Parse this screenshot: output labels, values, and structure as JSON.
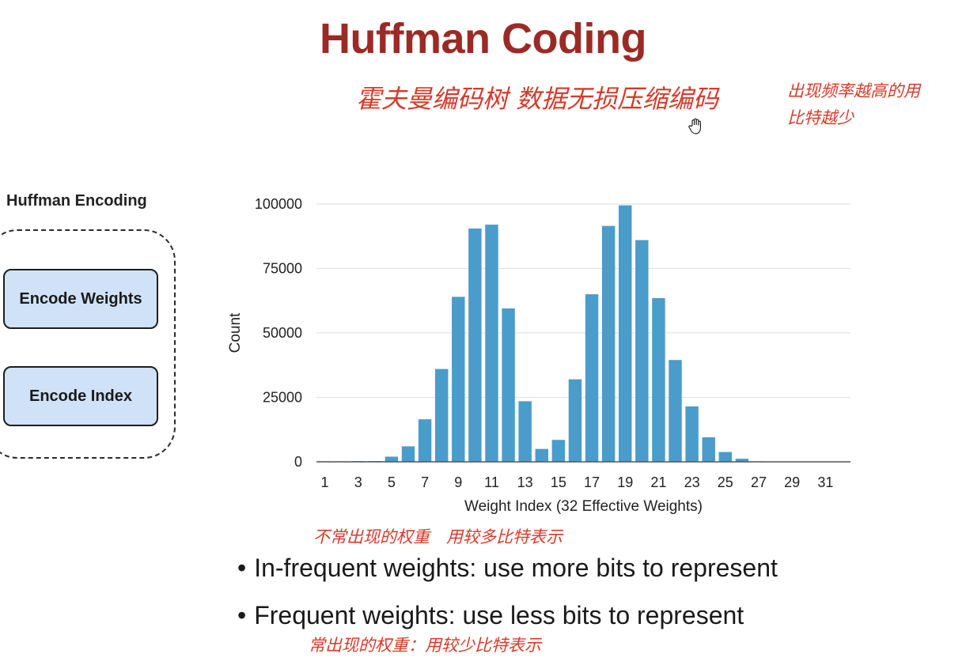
{
  "slide": {
    "title": "Huffman Coding",
    "annotations": {
      "title_note": "霍夫曼编码树 数据无损压缩编码",
      "side_note_line1": "出现频率越高的用",
      "side_note_line2": "比特越少",
      "infrequent_note": "不常出现的权重　用较多比特表示",
      "frequent_note": "常出现的权重：用较少比特表示"
    },
    "cursor_icon": "hand-cursor-icon"
  },
  "side_panel": {
    "title": "Huffman Encoding",
    "buttons": [
      "Encode Weights",
      "Encode Index"
    ],
    "button_fill": "#cfe2f7"
  },
  "bullets": [
    "In-frequent weights: use more bits to represent",
    "Frequent weights: use less bits to represent"
  ],
  "colors": {
    "title": "#9b2a25",
    "annotation": "#d23b2b",
    "bar": "#4a9ccb"
  },
  "chart_data": {
    "type": "bar",
    "xlabel": "Weight Index (32 Effective Weights)",
    "ylabel": "Count",
    "ylim": [
      0,
      100000
    ],
    "yticks": [
      0,
      25000,
      50000,
      75000,
      100000
    ],
    "xtick_labels": [
      "1",
      "3",
      "5",
      "7",
      "9",
      "11",
      "13",
      "15",
      "17",
      "19",
      "21",
      "23",
      "25",
      "27",
      "29",
      "31"
    ],
    "grid": "horizontal",
    "categories": [
      1,
      2,
      3,
      4,
      5,
      6,
      7,
      8,
      9,
      10,
      11,
      12,
      13,
      14,
      15,
      16,
      17,
      18,
      19,
      20,
      21,
      22,
      23,
      24,
      25,
      26,
      27,
      28,
      29,
      30,
      31,
      32
    ],
    "values": [
      200,
      200,
      300,
      300,
      2000,
      6000,
      16500,
      36000,
      64000,
      90500,
      92000,
      59500,
      23500,
      5000,
      8500,
      32000,
      65000,
      91500,
      99500,
      86000,
      63500,
      39500,
      21500,
      9500,
      3800,
      1200,
      200,
      150,
      100,
      100,
      100,
      100
    ]
  }
}
